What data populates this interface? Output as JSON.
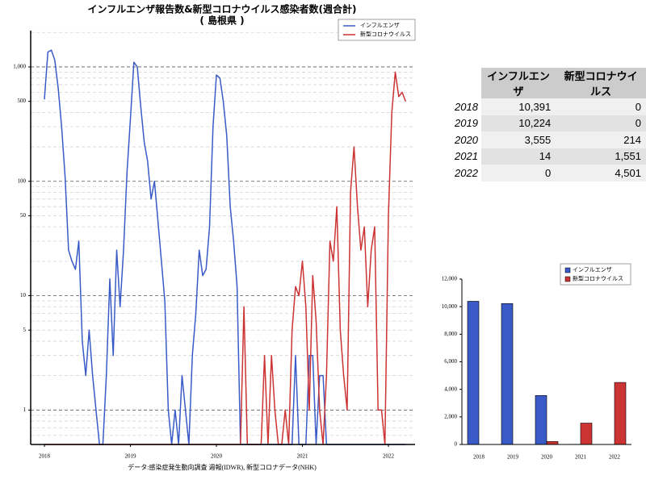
{
  "chart_data": [
    {
      "type": "line",
      "title": "インフルエンザ報告数&新型コロナウイルス感染者数(週合計)",
      "subtitle": "( 島根県 )",
      "source": "データ:感染症発生動向調査 週報(IDWR), 新型コロナデータ(NHK)",
      "log_scale": true,
      "grid": true,
      "legend": "upper right",
      "x": [
        2018.0,
        2018.04,
        2018.08,
        2018.12,
        2018.16,
        2018.2,
        2018.24,
        2018.28,
        2018.32,
        2018.36,
        2018.4,
        2018.44,
        2018.48,
        2018.52,
        2018.56,
        2018.6,
        2018.64,
        2018.68,
        2018.72,
        2018.76,
        2018.8,
        2018.84,
        2018.88,
        2018.92,
        2018.96,
        2019.0,
        2019.04,
        2019.08,
        2019.12,
        2019.16,
        2019.2,
        2019.24,
        2019.28,
        2019.32,
        2019.36,
        2019.4,
        2019.44,
        2019.48,
        2019.52,
        2019.56,
        2019.6,
        2019.64,
        2019.68,
        2019.72,
        2019.76,
        2019.8,
        2019.84,
        2019.88,
        2019.92,
        2019.96,
        2020.0,
        2020.04,
        2020.08,
        2020.12,
        2020.16,
        2020.2,
        2020.24,
        2020.28,
        2020.32,
        2020.36,
        2020.4,
        2020.44,
        2020.48,
        2020.52,
        2020.56,
        2020.6,
        2020.64,
        2020.68,
        2020.72,
        2020.76,
        2020.8,
        2020.84,
        2020.88,
        2020.92,
        2020.96,
        2021.0,
        2021.04,
        2021.08,
        2021.12,
        2021.16,
        2021.2,
        2021.24,
        2021.28,
        2021.32,
        2021.36,
        2021.4,
        2021.44,
        2021.48,
        2021.52,
        2021.56,
        2021.6,
        2021.64,
        2021.68,
        2021.72,
        2021.76,
        2021.8,
        2021.84,
        2021.88,
        2021.92,
        2021.96,
        2022.0,
        2022.04,
        2022.08,
        2022.12,
        2022.16,
        2022.2
      ],
      "xlim": [
        2017.84,
        2022.31
      ],
      "xticks": [
        2018,
        2019,
        2020,
        2021,
        2022
      ],
      "ylim": [
        0.5,
        2075
      ],
      "yticks": [
        1,
        5,
        10,
        50,
        100,
        500,
        {
          "value": 1000,
          "label": "1,000"
        }
      ],
      "yminorticks": [
        0.6,
        0.7,
        0.8,
        0.9,
        2,
        3,
        4,
        6,
        7,
        8,
        9,
        20,
        30,
        40,
        60,
        70,
        80,
        90,
        200,
        300,
        400,
        600,
        700,
        800,
        900,
        2000
      ],
      "series": [
        {
          "name": "インフルエンザ",
          "color": "#3a5bc7",
          "values": [
            520,
            1350,
            1400,
            1150,
            650,
            300,
            110,
            25,
            20,
            17,
            30,
            4,
            2,
            5,
            2,
            1,
            0,
            0,
            2,
            14,
            3,
            25,
            8,
            25,
            120,
            350,
            1100,
            1000,
            450,
            220,
            150,
            70,
            100,
            45,
            20,
            9,
            1,
            0,
            1,
            0,
            2,
            1,
            0,
            3,
            7,
            25,
            15,
            17,
            40,
            300,
            850,
            800,
            500,
            250,
            60,
            30,
            12,
            0,
            0,
            0,
            0,
            0,
            0,
            0,
            0,
            0,
            0,
            0,
            0,
            0,
            0,
            0,
            0,
            3,
            0,
            0,
            0,
            3,
            3,
            0,
            2,
            2,
            0,
            0,
            0,
            0,
            0,
            0,
            0,
            0,
            0,
            0,
            0,
            0,
            0,
            0,
            0,
            0,
            0,
            0,
            0,
            0,
            0,
            0,
            0,
            0
          ]
        },
        {
          "name": "新型コロナウイルス",
          "color": "#cc3333",
          "values": [
            0,
            0,
            0,
            0,
            0,
            0,
            0,
            0,
            0,
            0,
            0,
            0,
            0,
            0,
            0,
            0,
            0,
            0,
            0,
            0,
            0,
            0,
            0,
            0,
            0,
            0,
            0,
            0,
            0,
            0,
            0,
            0,
            0,
            0,
            0,
            0,
            0,
            0,
            0,
            0,
            0,
            0,
            0,
            0,
            0,
            0,
            0,
            0,
            0,
            0,
            0,
            0,
            0,
            0,
            0,
            0,
            0,
            0,
            8,
            0,
            0,
            0,
            0,
            0,
            3,
            0,
            3,
            1,
            0,
            0,
            1,
            0,
            5,
            12,
            10,
            20,
            8,
            1,
            15,
            6,
            1,
            0,
            2,
            30,
            20,
            60,
            5,
            2,
            1,
            80,
            200,
            60,
            25,
            40,
            8,
            25,
            40,
            1,
            1,
            0,
            50,
            400,
            900,
            550,
            600,
            500
          ]
        }
      ]
    },
    {
      "type": "bar",
      "legend": "upper right",
      "grid": false,
      "categories": [
        "2018",
        "2019",
        "2020",
        "2021",
        "2022"
      ],
      "ylim": [
        0,
        12000
      ],
      "yticks": [
        0,
        {
          "value": 2000,
          "label": "2,000"
        },
        {
          "value": 4000,
          "label": "4,000"
        },
        {
          "value": 6000,
          "label": "6,000"
        },
        {
          "value": 8000,
          "label": "8,000"
        },
        {
          "value": 10000,
          "label": "10,000"
        },
        {
          "value": 12000,
          "label": "12,000"
        }
      ],
      "series": [
        {
          "name": "インフルエンザ",
          "color": "#3a5bc7",
          "values": [
            10391,
            10224,
            3555,
            14,
            0
          ]
        },
        {
          "name": "新型コロナウイルス",
          "color": "#cc3333",
          "values": [
            0,
            0,
            214,
            1551,
            4501
          ]
        }
      ]
    }
  ],
  "table": {
    "header": [
      "インフルエンザ",
      "新型コロナウイルス"
    ],
    "rows": [
      [
        "2018",
        "10,391",
        "0"
      ],
      [
        "2019",
        "10,224",
        "0"
      ],
      [
        "2020",
        "3,555",
        "214"
      ],
      [
        "2021",
        "14",
        "1,551"
      ],
      [
        "2022",
        "0",
        "4,501"
      ]
    ]
  }
}
